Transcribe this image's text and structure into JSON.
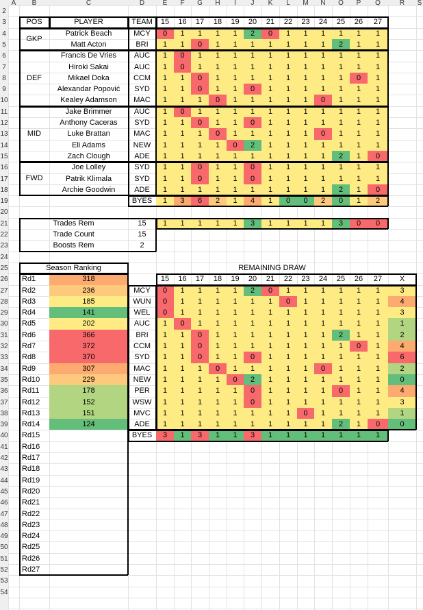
{
  "col_headers": [
    "A",
    "B",
    "C",
    "D",
    "E",
    "F",
    "G",
    "H",
    "I",
    "J",
    "K",
    "L",
    "M",
    "N",
    "O",
    "P",
    "Q",
    "R",
    "S"
  ],
  "rounds": [
    "15",
    "16",
    "17",
    "18",
    "19",
    "20",
    "21",
    "22",
    "23",
    "24",
    "25",
    "26",
    "27"
  ],
  "header": {
    "pos": "POS",
    "player": "PLAYER",
    "team": "TEAM"
  },
  "players": [
    {
      "pos": "GKP",
      "name": "Patrick Beach",
      "team": "MCY",
      "v": [
        0,
        1,
        1,
        1,
        1,
        2,
        0,
        1,
        1,
        1,
        1,
        1,
        1
      ]
    },
    {
      "pos": "",
      "name": "Matt Acton",
      "team": "BRI",
      "v": [
        1,
        1,
        0,
        1,
        1,
        1,
        1,
        1,
        1,
        1,
        2,
        1,
        1
      ]
    },
    {
      "pos": "DEF",
      "name": "Francis De Vries",
      "team": "AUC",
      "v": [
        1,
        0,
        1,
        1,
        1,
        1,
        1,
        1,
        1,
        1,
        1,
        1,
        1
      ]
    },
    {
      "pos": "",
      "name": "Hiroki Sakai",
      "team": "AUC",
      "v": [
        1,
        0,
        1,
        1,
        1,
        1,
        1,
        1,
        1,
        1,
        1,
        1,
        1
      ]
    },
    {
      "pos": "",
      "name": "Mikael Doka",
      "team": "CCM",
      "v": [
        1,
        1,
        0,
        1,
        1,
        1,
        1,
        1,
        1,
        1,
        1,
        0,
        1
      ]
    },
    {
      "pos": "",
      "name": "Alexandar Popović",
      "team": "SYD",
      "v": [
        1,
        1,
        0,
        1,
        1,
        0,
        1,
        1,
        1,
        1,
        1,
        1,
        1
      ]
    },
    {
      "pos": "",
      "name": "Kealey Adamson",
      "team": "MAC",
      "v": [
        1,
        1,
        1,
        0,
        1,
        1,
        1,
        1,
        1,
        0,
        1,
        1,
        1
      ]
    },
    {
      "pos": "MID",
      "name": "Jake Brimmer",
      "team": "AUC",
      "v": [
        1,
        0,
        1,
        1,
        1,
        1,
        1,
        1,
        1,
        1,
        1,
        1,
        1
      ]
    },
    {
      "pos": "",
      "name": "Anthony Caceras",
      "team": "SYD",
      "v": [
        1,
        1,
        0,
        1,
        1,
        0,
        1,
        1,
        1,
        1,
        1,
        1,
        1
      ]
    },
    {
      "pos": "",
      "name": "Luke Brattan",
      "team": "MAC",
      "v": [
        1,
        1,
        1,
        0,
        1,
        1,
        1,
        1,
        1,
        0,
        1,
        1,
        1
      ]
    },
    {
      "pos": "",
      "name": "Eli Adams",
      "team": "NEW",
      "v": [
        1,
        1,
        1,
        1,
        0,
        2,
        1,
        1,
        1,
        1,
        1,
        1,
        1
      ]
    },
    {
      "pos": "",
      "name": "Zach Clough",
      "team": "ADE",
      "v": [
        1,
        1,
        1,
        1,
        1,
        1,
        1,
        1,
        1,
        1,
        2,
        1,
        0
      ]
    },
    {
      "pos": "FWD",
      "name": "Joe Lolley",
      "team": "SYD",
      "v": [
        1,
        1,
        0,
        1,
        1,
        0,
        1,
        1,
        1,
        1,
        1,
        1,
        1
      ]
    },
    {
      "pos": "",
      "name": "Patrik Klimala",
      "team": "SYD",
      "v": [
        1,
        1,
        0,
        1,
        1,
        0,
        1,
        1,
        1,
        1,
        1,
        1,
        1
      ]
    },
    {
      "pos": "",
      "name": "Archie Goodwin",
      "team": "ADE",
      "v": [
        1,
        1,
        1,
        1,
        1,
        1,
        1,
        1,
        1,
        1,
        2,
        1,
        0
      ]
    }
  ],
  "byes_label": "BYES",
  "byes": [
    "1",
    "3",
    "6",
    "2",
    "1",
    "4",
    "1",
    "0",
    "0",
    "2",
    "0",
    "1",
    "2"
  ],
  "trades": {
    "trades_rem_label": "Trades Rem",
    "trades_rem": "15",
    "trade_count_label": "Trade Count",
    "trade_count": "15",
    "boosts_rem_label": "Boosts Rem",
    "boosts_rem": "2",
    "row": [
      "1",
      "1",
      "1",
      "1",
      "1",
      "3",
      "1",
      "1",
      "1",
      "1",
      "3",
      "0",
      "0"
    ]
  },
  "season": {
    "title": "Season Ranking",
    "rows": [
      {
        "rd": "Rd1",
        "v": "318"
      },
      {
        "rd": "Rd2",
        "v": "236"
      },
      {
        "rd": "Rd3",
        "v": "185"
      },
      {
        "rd": "Rd4",
        "v": "141"
      },
      {
        "rd": "Rd5",
        "v": "202"
      },
      {
        "rd": "Rd6",
        "v": "366"
      },
      {
        "rd": "Rd7",
        "v": "372"
      },
      {
        "rd": "Rd8",
        "v": "370"
      },
      {
        "rd": "Rd9",
        "v": "307"
      },
      {
        "rd": "Rd10",
        "v": "229"
      },
      {
        "rd": "Rd11",
        "v": "178"
      },
      {
        "rd": "Rd12",
        "v": "152"
      },
      {
        "rd": "Rd13",
        "v": "151"
      },
      {
        "rd": "Rd14",
        "v": "124"
      },
      {
        "rd": "Rd15",
        "v": ""
      },
      {
        "rd": "Rd16",
        "v": ""
      },
      {
        "rd": "Rd17",
        "v": ""
      },
      {
        "rd": "Rd18",
        "v": ""
      },
      {
        "rd": "Rd19",
        "v": ""
      },
      {
        "rd": "Rd20",
        "v": ""
      },
      {
        "rd": "Rd21",
        "v": ""
      },
      {
        "rd": "Rd22",
        "v": ""
      },
      {
        "rd": "Rd23",
        "v": ""
      },
      {
        "rd": "Rd24",
        "v": ""
      },
      {
        "rd": "Rd25",
        "v": ""
      },
      {
        "rd": "Rd26",
        "v": ""
      },
      {
        "rd": "Rd27",
        "v": ""
      }
    ]
  },
  "draw": {
    "title": "REMAINING DRAW",
    "x_label": "X",
    "teams": [
      {
        "t": "MCY",
        "v": [
          0,
          1,
          1,
          1,
          1,
          2,
          0,
          1,
          1,
          1,
          1,
          1,
          1
        ],
        "x": "3"
      },
      {
        "t": "WUN",
        "v": [
          0,
          1,
          1,
          1,
          1,
          1,
          1,
          0,
          1,
          1,
          1,
          1,
          1
        ],
        "x": "4"
      },
      {
        "t": "WEL",
        "v": [
          0,
          1,
          1,
          1,
          1,
          1,
          1,
          1,
          1,
          1,
          1,
          1,
          1
        ],
        "x": "3"
      },
      {
        "t": "AUC",
        "v": [
          1,
          0,
          1,
          1,
          1,
          1,
          1,
          1,
          1,
          1,
          1,
          1,
          1
        ],
        "x": "1"
      },
      {
        "t": "BRI",
        "v": [
          1,
          1,
          0,
          1,
          1,
          1,
          1,
          1,
          1,
          1,
          2,
          1,
          1
        ],
        "x": "2"
      },
      {
        "t": "CCM",
        "v": [
          1,
          1,
          0,
          1,
          1,
          1,
          1,
          1,
          1,
          1,
          1,
          0,
          1
        ],
        "x": "4"
      },
      {
        "t": "SYD",
        "v": [
          1,
          1,
          0,
          1,
          1,
          0,
          1,
          1,
          1,
          1,
          1,
          1,
          1
        ],
        "x": "6"
      },
      {
        "t": "MAC",
        "v": [
          1,
          1,
          1,
          0,
          1,
          1,
          1,
          1,
          1,
          0,
          1,
          1,
          1
        ],
        "x": "2"
      },
      {
        "t": "NEW",
        "v": [
          1,
          1,
          1,
          1,
          0,
          2,
          1,
          1,
          1,
          1,
          1,
          1,
          1
        ],
        "x": "0"
      },
      {
        "t": "PER",
        "v": [
          1,
          1,
          1,
          1,
          1,
          0,
          1,
          1,
          1,
          1,
          0,
          1,
          1
        ],
        "x": "4"
      },
      {
        "t": "WSW",
        "v": [
          1,
          1,
          1,
          1,
          1,
          0,
          1,
          1,
          1,
          1,
          1,
          1,
          1
        ],
        "x": "3"
      },
      {
        "t": "MVC",
        "v": [
          1,
          1,
          1,
          1,
          1,
          1,
          1,
          1,
          0,
          1,
          1,
          1,
          1
        ],
        "x": "1"
      },
      {
        "t": "ADE",
        "v": [
          1,
          1,
          1,
          1,
          1,
          1,
          1,
          1,
          1,
          1,
          2,
          1,
          0
        ],
        "x": "0"
      }
    ],
    "byes": [
      "3",
      "1",
      "3",
      "1",
      "1",
      "3",
      "1",
      "1",
      "1",
      "1",
      "1",
      "1",
      "1"
    ]
  },
  "colors": {
    "red": "#f8696b",
    "green": "#63be7b",
    "yellow": "#ffeb84",
    "orange": "#fcaa6f"
  }
}
